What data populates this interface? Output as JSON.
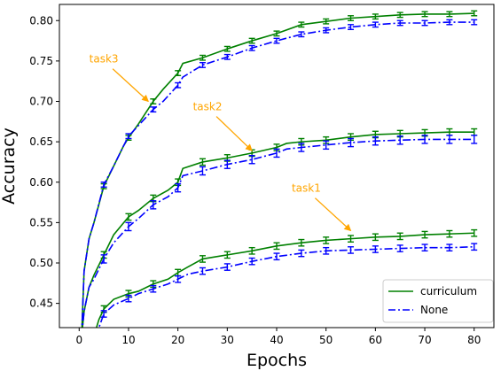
{
  "chart_data": {
    "type": "line",
    "title": "",
    "xlabel": "Epochs",
    "ylabel": "Accuracy",
    "xlim": [
      -4,
      84
    ],
    "ylim": [
      0.42,
      0.82
    ],
    "x_ticks": [
      0,
      10,
      20,
      30,
      40,
      50,
      60,
      70,
      80
    ],
    "y_ticks": [
      0.45,
      0.5,
      0.55,
      0.6,
      0.65,
      0.7,
      0.75,
      0.8
    ],
    "grid": false,
    "legend_position": "lower right",
    "legend": [
      {
        "label": "curriculum",
        "color": "#008000",
        "style": "solid"
      },
      {
        "label": "None",
        "color": "#0000ff",
        "style": "dashdot"
      }
    ],
    "error_bar_x": [
      5,
      10,
      15,
      20,
      25,
      30,
      35,
      40,
      45,
      50,
      55,
      60,
      65,
      70,
      75,
      80
    ],
    "series": [
      {
        "task": "task3",
        "method": "curriculum",
        "color": "#008000",
        "style": "solid",
        "points": [
          [
            0.5,
            0.41
          ],
          [
            1,
            0.49
          ],
          [
            2,
            0.53
          ],
          [
            3,
            0.55
          ],
          [
            5,
            0.595
          ],
          [
            7,
            0.62
          ],
          [
            9,
            0.645
          ],
          [
            10,
            0.655
          ],
          [
            12,
            0.672
          ],
          [
            15,
            0.7
          ],
          [
            17,
            0.715
          ],
          [
            20,
            0.735
          ],
          [
            21,
            0.747
          ],
          [
            25,
            0.754
          ],
          [
            30,
            0.765
          ],
          [
            35,
            0.775
          ],
          [
            40,
            0.784
          ],
          [
            45,
            0.795
          ],
          [
            50,
            0.799
          ],
          [
            55,
            0.803
          ],
          [
            60,
            0.805
          ],
          [
            65,
            0.807
          ],
          [
            70,
            0.808
          ],
          [
            75,
            0.808
          ],
          [
            80,
            0.809
          ]
        ],
        "error_y": [
          0.595,
          0.655,
          0.7,
          0.735,
          0.754,
          0.765,
          0.775,
          0.784,
          0.795,
          0.799,
          0.803,
          0.805,
          0.807,
          0.808,
          0.808,
          0.809
        ],
        "error_size": 0.003
      },
      {
        "task": "task3",
        "method": "None",
        "color": "#0000ff",
        "style": "dashdot",
        "points": [
          [
            0.5,
            0.41
          ],
          [
            1,
            0.49
          ],
          [
            2,
            0.53
          ],
          [
            3,
            0.55
          ],
          [
            5,
            0.597
          ],
          [
            7,
            0.62
          ],
          [
            9,
            0.645
          ],
          [
            10,
            0.657
          ],
          [
            12,
            0.67
          ],
          [
            15,
            0.69
          ],
          [
            17,
            0.7
          ],
          [
            20,
            0.72
          ],
          [
            21,
            0.73
          ],
          [
            25,
            0.745
          ],
          [
            30,
            0.755
          ],
          [
            35,
            0.766
          ],
          [
            40,
            0.775
          ],
          [
            45,
            0.783
          ],
          [
            50,
            0.788
          ],
          [
            55,
            0.792
          ],
          [
            60,
            0.795
          ],
          [
            65,
            0.797
          ],
          [
            70,
            0.797
          ],
          [
            75,
            0.798
          ],
          [
            80,
            0.798
          ]
        ],
        "error_y": [
          0.597,
          0.657,
          0.69,
          0.72,
          0.745,
          0.755,
          0.766,
          0.775,
          0.783,
          0.788,
          0.792,
          0.795,
          0.797,
          0.797,
          0.798,
          0.798
        ],
        "error_size": 0.003
      },
      {
        "task": "task2",
        "method": "curriculum",
        "color": "#008000",
        "style": "solid",
        "points": [
          [
            0.5,
            0.41
          ],
          [
            1,
            0.44
          ],
          [
            2,
            0.47
          ],
          [
            3,
            0.485
          ],
          [
            5,
            0.51
          ],
          [
            7,
            0.535
          ],
          [
            10,
            0.557
          ],
          [
            12,
            0.565
          ],
          [
            15,
            0.58
          ],
          [
            18,
            0.59
          ],
          [
            20,
            0.6
          ],
          [
            21,
            0.617
          ],
          [
            25,
            0.625
          ],
          [
            30,
            0.63
          ],
          [
            35,
            0.636
          ],
          [
            40,
            0.643
          ],
          [
            42,
            0.648
          ],
          [
            45,
            0.65
          ],
          [
            50,
            0.652
          ],
          [
            55,
            0.656
          ],
          [
            60,
            0.659
          ],
          [
            65,
            0.66
          ],
          [
            70,
            0.661
          ],
          [
            75,
            0.662
          ],
          [
            80,
            0.662
          ]
        ],
        "error_y": [
          0.51,
          0.557,
          0.58,
          0.6,
          0.625,
          0.63,
          0.636,
          0.643,
          0.65,
          0.652,
          0.656,
          0.659,
          0.66,
          0.661,
          0.662,
          0.662
        ],
        "error_size": 0.004
      },
      {
        "task": "task2",
        "method": "None",
        "color": "#0000ff",
        "style": "dashdot",
        "points": [
          [
            0.5,
            0.41
          ],
          [
            1,
            0.44
          ],
          [
            2,
            0.47
          ],
          [
            3,
            0.48
          ],
          [
            5,
            0.505
          ],
          [
            7,
            0.525
          ],
          [
            10,
            0.545
          ],
          [
            12,
            0.555
          ],
          [
            15,
            0.572
          ],
          [
            18,
            0.582
          ],
          [
            20,
            0.593
          ],
          [
            21,
            0.608
          ],
          [
            25,
            0.614
          ],
          [
            30,
            0.622
          ],
          [
            35,
            0.628
          ],
          [
            40,
            0.636
          ],
          [
            42,
            0.641
          ],
          [
            45,
            0.643
          ],
          [
            50,
            0.646
          ],
          [
            55,
            0.649
          ],
          [
            60,
            0.651
          ],
          [
            65,
            0.652
          ],
          [
            70,
            0.653
          ],
          [
            75,
            0.653
          ],
          [
            80,
            0.653
          ]
        ],
        "error_y": [
          0.505,
          0.545,
          0.572,
          0.593,
          0.614,
          0.622,
          0.628,
          0.636,
          0.643,
          0.646,
          0.649,
          0.651,
          0.652,
          0.653,
          0.653,
          0.653
        ],
        "error_size": 0.005
      },
      {
        "task": "task1",
        "method": "curriculum",
        "color": "#008000",
        "style": "solid",
        "points": [
          [
            3,
            0.41
          ],
          [
            4,
            0.43
          ],
          [
            5,
            0.443
          ],
          [
            7,
            0.455
          ],
          [
            10,
            0.462
          ],
          [
            12,
            0.465
          ],
          [
            15,
            0.474
          ],
          [
            18,
            0.48
          ],
          [
            20,
            0.488
          ],
          [
            22,
            0.495
          ],
          [
            25,
            0.505
          ],
          [
            30,
            0.51
          ],
          [
            35,
            0.515
          ],
          [
            40,
            0.521
          ],
          [
            45,
            0.525
          ],
          [
            50,
            0.528
          ],
          [
            55,
            0.53
          ],
          [
            60,
            0.532
          ],
          [
            65,
            0.533
          ],
          [
            70,
            0.535
          ],
          [
            75,
            0.536
          ],
          [
            80,
            0.537
          ]
        ],
        "error_y": [
          0.443,
          0.462,
          0.474,
          0.488,
          0.505,
          0.51,
          0.515,
          0.521,
          0.525,
          0.528,
          0.53,
          0.532,
          0.533,
          0.535,
          0.536,
          0.537
        ],
        "error_size": 0.004
      },
      {
        "task": "task1",
        "method": "None",
        "color": "#0000ff",
        "style": "dashdot",
        "points": [
          [
            3,
            0.41
          ],
          [
            4,
            0.42
          ],
          [
            5,
            0.437
          ],
          [
            7,
            0.448
          ],
          [
            10,
            0.456
          ],
          [
            12,
            0.462
          ],
          [
            15,
            0.468
          ],
          [
            18,
            0.474
          ],
          [
            20,
            0.48
          ],
          [
            22,
            0.486
          ],
          [
            25,
            0.49
          ],
          [
            30,
            0.495
          ],
          [
            35,
            0.502
          ],
          [
            40,
            0.508
          ],
          [
            45,
            0.512
          ],
          [
            50,
            0.515
          ],
          [
            55,
            0.516
          ],
          [
            60,
            0.517
          ],
          [
            65,
            0.518
          ],
          [
            70,
            0.519
          ],
          [
            75,
            0.519
          ],
          [
            80,
            0.52
          ]
        ],
        "error_y": [
          0.437,
          0.456,
          0.468,
          0.48,
          0.49,
          0.495,
          0.502,
          0.508,
          0.512,
          0.515,
          0.516,
          0.517,
          0.518,
          0.519,
          0.519,
          0.52
        ],
        "error_size": 0.004
      }
    ],
    "annotations": [
      {
        "text": "task3",
        "color": "#ffa500",
        "text_at": [
          5,
          0.748
        ],
        "arrow_to": [
          14,
          0.7
        ]
      },
      {
        "text": "task2",
        "color": "#ffa500",
        "text_at": [
          26,
          0.689
        ],
        "arrow_to": [
          35,
          0.639
        ]
      },
      {
        "text": "task1",
        "color": "#ffa500",
        "text_at": [
          46,
          0.588
        ],
        "arrow_to": [
          55,
          0.54
        ]
      }
    ]
  }
}
